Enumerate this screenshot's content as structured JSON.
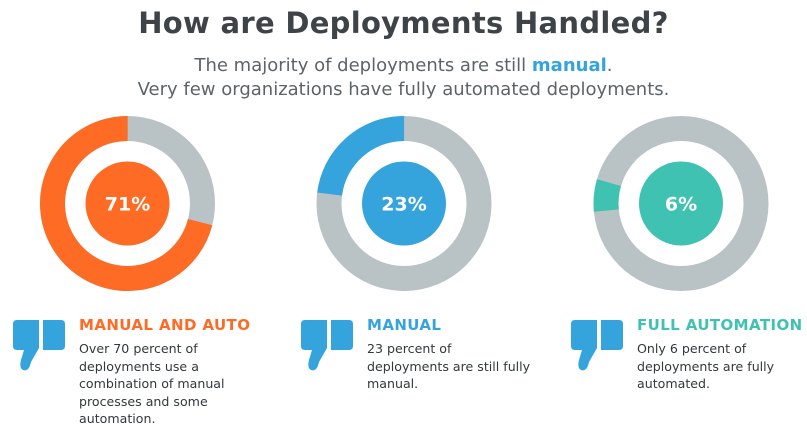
{
  "header": {
    "title": "How are Deployments Handled?",
    "subtitle_line1_before": "The majority of deployments are still ",
    "subtitle_line1_highlight": "manual",
    "subtitle_line1_after": ".",
    "subtitle_line2": "Very few organizations have fully automated deployments."
  },
  "colors": {
    "ring_track": "#b9c2c4",
    "highlight_text": "#35a4dd",
    "icon": "#35a4dd"
  },
  "chart_data": {
    "type": "pie",
    "title": "How are Deployments Handled?",
    "charts": [
      {
        "name": "Manual and Auto",
        "value": 71,
        "label": "71%",
        "color": "#fd6b25",
        "start_fraction": 0.0,
        "direction": "counterclockwise"
      },
      {
        "name": "Manual",
        "value": 23,
        "label": "23%",
        "color": "#35a4dd",
        "start_fraction": 0.0,
        "direction": "counterclockwise"
      },
      {
        "name": "Full Automation",
        "value": 6,
        "label": "6%",
        "color": "#40c2b2",
        "start_fraction": 0.205,
        "direction": "counterclockwise"
      }
    ]
  },
  "cards": [
    {
      "heading": "MANUAL AND AUTO",
      "color": "#fd6b25",
      "body": "Over 70 percent of deployments use a combination of manual processes and some automation.",
      "icon": "thumbs-down-icon"
    },
    {
      "heading": "MANUAL",
      "color": "#35a4dd",
      "body": "23 percent of deployments are still fully manual.",
      "icon": "thumbs-down-icon"
    },
    {
      "heading": "FULL AUTOMATION",
      "color": "#40c2b2",
      "body": "Only 6 percent of deployments are fully automated.",
      "icon": "thumbs-down-icon"
    }
  ]
}
